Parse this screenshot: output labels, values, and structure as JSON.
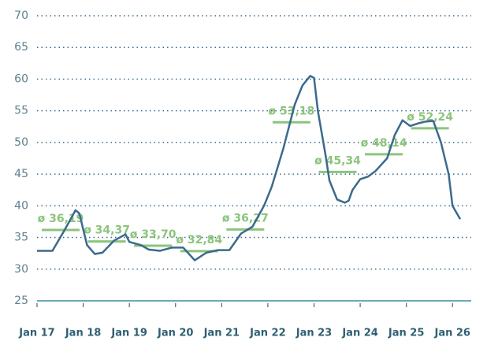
{
  "chart_data": {
    "type": "line",
    "x": [
      0,
      4,
      7,
      10,
      11,
      13,
      15,
      17,
      20,
      23,
      24,
      27,
      29,
      32,
      35,
      38,
      41,
      44,
      47,
      50,
      53,
      56,
      59,
      61,
      64,
      67,
      69,
      71,
      72,
      73,
      75,
      76,
      78,
      80,
      81,
      82,
      84,
      86,
      88,
      91,
      93,
      95,
      97,
      99,
      101,
      103,
      105,
      107,
      108,
      110
    ],
    "series": [
      {
        "color": "#3b6a8d",
        "values": [
          32.9,
          32.9,
          36,
          39.3,
          38.8,
          33.8,
          32.4,
          32.6,
          34.5,
          35.5,
          34.3,
          33.8,
          33.1,
          32.9,
          33.4,
          33.4,
          31.4,
          32.6,
          33,
          33,
          35.6,
          36.7,
          40,
          43,
          49,
          56,
          59,
          60.5,
          60.2,
          55,
          48,
          44,
          41,
          40.5,
          40.8,
          42.5,
          44.2,
          44.6,
          45.5,
          47.5,
          51.2,
          53.5,
          52.6,
          53,
          53.3,
          53.4,
          50,
          45,
          40,
          37.9
        ]
      }
    ],
    "averages": {
      "color": "#8cc47c",
      "values": [
        36.19,
        34.37,
        33.7,
        32.84,
        36.27,
        53.18,
        45.34,
        48.14,
        52.24
      ],
      "value_labels": [
        "ø 36,19",
        "ø 34,37",
        "ø 33,70",
        "ø 32,84",
        "ø 36,27",
        "ø 53,18",
        "ø 45,34",
        "ø 48,14",
        "ø 52,24"
      ]
    },
    "xlim": [
      0,
      110
    ],
    "xticks": [
      {
        "value": 0,
        "label": "Jan 17"
      },
      {
        "value": 12,
        "label": "Jan 18"
      },
      {
        "value": 24,
        "label": "Jan 19"
      },
      {
        "value": 36,
        "label": "Jan 20"
      },
      {
        "value": 48,
        "label": "Jan 21"
      },
      {
        "value": 60,
        "label": "Jan 22"
      },
      {
        "value": 72,
        "label": "Jan 23"
      },
      {
        "value": 84,
        "label": "Jan 24"
      },
      {
        "value": 96,
        "label": "Jan 25"
      },
      {
        "value": 108,
        "label": "Jan 26"
      }
    ],
    "ylim": [
      25,
      70
    ],
    "yticks": [
      25,
      30,
      35,
      40,
      45,
      50,
      55,
      60,
      65,
      70
    ],
    "grid": true
  }
}
